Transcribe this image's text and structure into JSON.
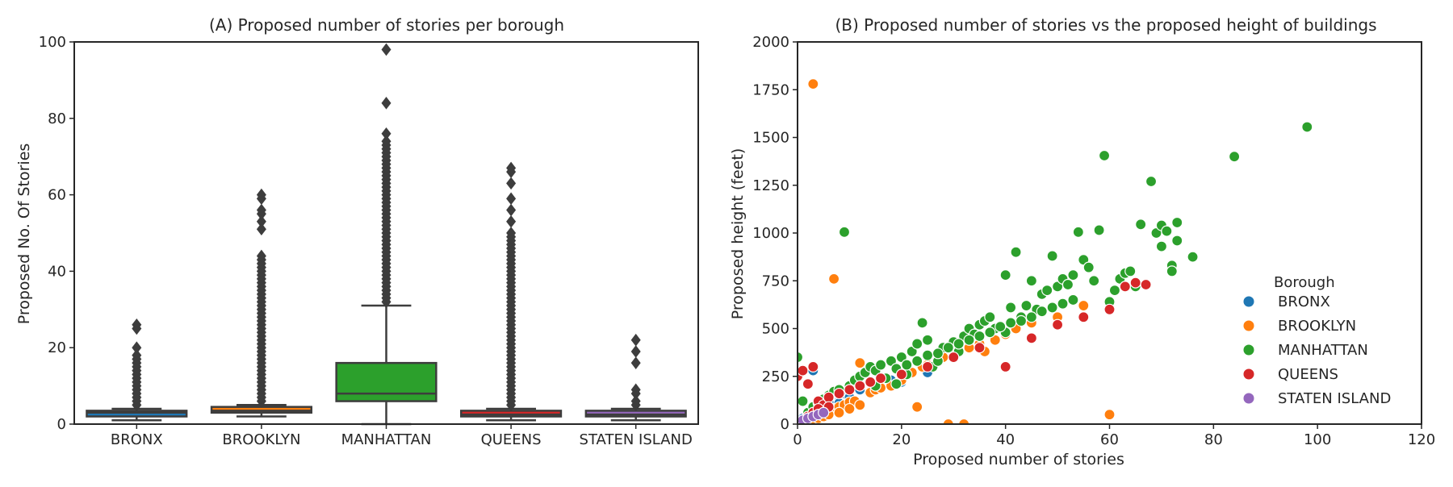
{
  "colors": {
    "BRONX": "#1f77b4",
    "BROOKLYN": "#ff7f0e",
    "MANHATTAN": "#2ca02c",
    "QUEENS": "#d62728",
    "STATEN ISLAND": "#9467bd",
    "line": "#3d3d3d",
    "frame": "#262626"
  },
  "chart_data": [
    {
      "type": "box",
      "title": "(A) Proposed number of stories per borough",
      "xlabel": "",
      "ylabel": "Proposed No. Of Stories",
      "ylim": [
        0,
        100
      ],
      "yticks": [
        0,
        20,
        40,
        60,
        80,
        100
      ],
      "categories": [
        "BRONX",
        "BROOKLYN",
        "MANHATTAN",
        "QUEENS",
        "STATEN ISLAND"
      ],
      "boxes": [
        {
          "name": "BRONX",
          "whisker_low": 1,
          "q1": 2,
          "median": 3,
          "q3": 3.5,
          "whisker_high": 4,
          "outliers": [
            5,
            6,
            7,
            8,
            9,
            10,
            11,
            12,
            13,
            14,
            15,
            16,
            17,
            18,
            20,
            25,
            26
          ]
        },
        {
          "name": "BROOKLYN",
          "whisker_low": 2,
          "q1": 3,
          "median": 3.5,
          "q3": 4.5,
          "whisker_high": 5,
          "outliers": [
            6,
            7,
            8,
            9,
            10,
            11,
            12,
            13,
            14,
            15,
            16,
            17,
            18,
            19,
            20,
            21,
            22,
            23,
            24,
            25,
            26,
            27,
            28,
            29,
            30,
            31,
            32,
            33,
            34,
            35,
            36,
            37,
            38,
            39,
            40,
            41,
            42,
            43,
            44,
            51,
            53,
            55,
            56,
            59,
            60
          ]
        },
        {
          "name": "MANHATTAN",
          "whisker_low": 0,
          "q1": 6,
          "median": 8,
          "q3": 16,
          "whisker_high": 31,
          "outliers": [
            32,
            33,
            34,
            35,
            36,
            37,
            38,
            39,
            40,
            41,
            42,
            43,
            44,
            45,
            46,
            47,
            48,
            49,
            50,
            51,
            52,
            53,
            54,
            55,
            56,
            57,
            58,
            59,
            60,
            61,
            62,
            63,
            64,
            65,
            66,
            67,
            68,
            69,
            70,
            71,
            72,
            73,
            74,
            76,
            84,
            98
          ]
        },
        {
          "name": "QUEENS",
          "whisker_low": 1,
          "q1": 2,
          "median": 2.5,
          "q3": 3.5,
          "whisker_high": 4,
          "outliers": [
            5,
            6,
            7,
            8,
            9,
            10,
            11,
            12,
            13,
            14,
            15,
            16,
            17,
            18,
            19,
            20,
            21,
            22,
            23,
            24,
            25,
            26,
            27,
            28,
            29,
            30,
            31,
            32,
            33,
            34,
            35,
            36,
            37,
            38,
            39,
            40,
            41,
            42,
            43,
            44,
            45,
            46,
            47,
            48,
            49,
            50,
            53,
            56,
            59,
            63,
            66,
            67
          ]
        },
        {
          "name": "STATEN ISLAND",
          "whisker_low": 1,
          "q1": 2,
          "median": 2.5,
          "q3": 3.5,
          "whisker_high": 4,
          "outliers": [
            5,
            6,
            8,
            9,
            16,
            19,
            22
          ]
        }
      ]
    },
    {
      "type": "scatter",
      "title": "(B) Proposed number of stories vs the proposed height of buildings",
      "xlabel": "Proposed number of stories",
      "ylabel": "Proposed height (feet)",
      "xlim": [
        0,
        120
      ],
      "ylim": [
        0,
        2000
      ],
      "xticks": [
        0,
        20,
        40,
        60,
        80,
        100,
        120
      ],
      "yticks": [
        0,
        250,
        500,
        750,
        1000,
        1250,
        1500,
        1750,
        2000
      ],
      "legend_title": "Borough",
      "legend_position": "lower-right",
      "series": [
        {
          "name": "BRONX",
          "points": [
            [
              1,
              30
            ],
            [
              2,
              50
            ],
            [
              3,
              60
            ],
            [
              3,
              280
            ],
            [
              4,
              40
            ],
            [
              5,
              80
            ],
            [
              6,
              150
            ],
            [
              7,
              100
            ],
            [
              8,
              120
            ],
            [
              9,
              160
            ],
            [
              10,
              140
            ],
            [
              12,
              180
            ],
            [
              14,
              170
            ],
            [
              18,
              230
            ],
            [
              20,
              220
            ],
            [
              25,
              270
            ],
            [
              2,
              20
            ],
            [
              4,
              60
            ],
            [
              6,
              90
            ],
            [
              8,
              110
            ]
          ]
        },
        {
          "name": "BROOKLYN",
          "points": [
            [
              1,
              15
            ],
            [
              2,
              25
            ],
            [
              3,
              35
            ],
            [
              3,
              1780
            ],
            [
              4,
              45
            ],
            [
              5,
              55
            ],
            [
              6,
              70
            ],
            [
              7,
              80
            ],
            [
              7,
              760
            ],
            [
              8,
              90
            ],
            [
              9,
              100
            ],
            [
              10,
              115
            ],
            [
              11,
              120
            ],
            [
              12,
              320
            ],
            [
              14,
              165
            ],
            [
              15,
              180
            ],
            [
              16,
              190
            ],
            [
              18,
              200
            ],
            [
              20,
              230
            ],
            [
              22,
              270
            ],
            [
              23,
              90
            ],
            [
              24,
              300
            ],
            [
              25,
              310
            ],
            [
              27,
              330
            ],
            [
              29,
              0
            ],
            [
              30,
              360
            ],
            [
              32,
              0
            ],
            [
              33,
              400
            ],
            [
              35,
              420
            ],
            [
              38,
              440
            ],
            [
              40,
              470
            ],
            [
              42,
              500
            ],
            [
              45,
              530
            ],
            [
              50,
              560
            ],
            [
              55,
              620
            ],
            [
              57,
              750
            ],
            [
              60,
              50
            ],
            [
              1,
              5
            ],
            [
              2,
              10
            ],
            [
              3,
              20
            ],
            [
              4,
              30
            ],
            [
              5,
              40
            ],
            [
              6,
              50
            ],
            [
              8,
              60
            ],
            [
              10,
              80
            ],
            [
              12,
              100
            ],
            [
              28,
              350
            ],
            [
              36,
              380
            ]
          ]
        },
        {
          "name": "MANHATTAN",
          "points": [
            [
              0,
              350
            ],
            [
              1,
              120
            ],
            [
              2,
              60
            ],
            [
              3,
              90
            ],
            [
              4,
              110
            ],
            [
              5,
              130
            ],
            [
              6,
              150
            ],
            [
              7,
              170
            ],
            [
              8,
              180
            ],
            [
              9,
              1005
            ],
            [
              10,
              200
            ],
            [
              11,
              230
            ],
            [
              12,
              250
            ],
            [
              13,
              270
            ],
            [
              14,
              300
            ],
            [
              15,
              280
            ],
            [
              16,
              310
            ],
            [
              18,
              330
            ],
            [
              19,
              210
            ],
            [
              20,
              350
            ],
            [
              21,
              260
            ],
            [
              22,
              380
            ],
            [
              23,
              420
            ],
            [
              24,
              530
            ],
            [
              25,
              440
            ],
            [
              26,
              300
            ],
            [
              27,
              330
            ],
            [
              28,
              400
            ],
            [
              30,
              430
            ],
            [
              31,
              380
            ],
            [
              32,
              460
            ],
            [
              33,
              500
            ],
            [
              34,
              470
            ],
            [
              35,
              520
            ],
            [
              36,
              540
            ],
            [
              37,
              560
            ],
            [
              38,
              500
            ],
            [
              40,
              480
            ],
            [
              40,
              780
            ],
            [
              41,
              610
            ],
            [
              42,
              900
            ],
            [
              43,
              560
            ],
            [
              44,
              620
            ],
            [
              45,
              750
            ],
            [
              46,
              600
            ],
            [
              47,
              680
            ],
            [
              48,
              700
            ],
            [
              49,
              880
            ],
            [
              50,
              720
            ],
            [
              51,
              760
            ],
            [
              52,
              730
            ],
            [
              53,
              780
            ],
            [
              54,
              1005
            ],
            [
              55,
              860
            ],
            [
              56,
              820
            ],
            [
              57,
              750
            ],
            [
              58,
              1015
            ],
            [
              59,
              1405
            ],
            [
              60,
              640
            ],
            [
              61,
              700
            ],
            [
              62,
              760
            ],
            [
              63,
              790
            ],
            [
              64,
              800
            ],
            [
              65,
              720
            ],
            [
              66,
              1045
            ],
            [
              68,
              1270
            ],
            [
              69,
              1000
            ],
            [
              70,
              1040
            ],
            [
              70,
              930
            ],
            [
              71,
              1010
            ],
            [
              72,
              830
            ],
            [
              72,
              800
            ],
            [
              73,
              960
            ],
            [
              73,
              1055
            ],
            [
              76,
              875
            ],
            [
              84,
              1400
            ],
            [
              98,
              1555
            ],
            [
              15,
              200
            ],
            [
              17,
              240
            ],
            [
              19,
              290
            ],
            [
              21,
              310
            ],
            [
              23,
              330
            ],
            [
              25,
              360
            ],
            [
              27,
              370
            ],
            [
              29,
              400
            ],
            [
              31,
              420
            ],
            [
              33,
              440
            ],
            [
              35,
              460
            ],
            [
              37,
              480
            ],
            [
              39,
              510
            ],
            [
              41,
              530
            ],
            [
              43,
              540
            ],
            [
              45,
              560
            ],
            [
              47,
              590
            ],
            [
              49,
              610
            ],
            [
              51,
              630
            ],
            [
              53,
              650
            ]
          ]
        },
        {
          "name": "QUEENS",
          "points": [
            [
              0,
              250
            ],
            [
              1,
              280
            ],
            [
              2,
              210
            ],
            [
              3,
              300
            ],
            [
              4,
              120
            ],
            [
              5,
              100
            ],
            [
              6,
              140
            ],
            [
              8,
              160
            ],
            [
              10,
              180
            ],
            [
              12,
              200
            ],
            [
              14,
              220
            ],
            [
              16,
              240
            ],
            [
              20,
              260
            ],
            [
              25,
              300
            ],
            [
              30,
              350
            ],
            [
              35,
              400
            ],
            [
              40,
              300
            ],
            [
              45,
              450
            ],
            [
              50,
              520
            ],
            [
              55,
              560
            ],
            [
              60,
              600
            ],
            [
              63,
              720
            ],
            [
              65,
              740
            ],
            [
              67,
              730
            ],
            [
              1,
              20
            ],
            [
              2,
              40
            ],
            [
              3,
              60
            ],
            [
              4,
              80
            ],
            [
              6,
              90
            ]
          ]
        },
        {
          "name": "STATEN ISLAND",
          "points": [
            [
              1,
              20
            ],
            [
              2,
              30
            ],
            [
              3,
              40
            ],
            [
              4,
              50
            ],
            [
              5,
              60
            ]
          ]
        }
      ]
    }
  ]
}
